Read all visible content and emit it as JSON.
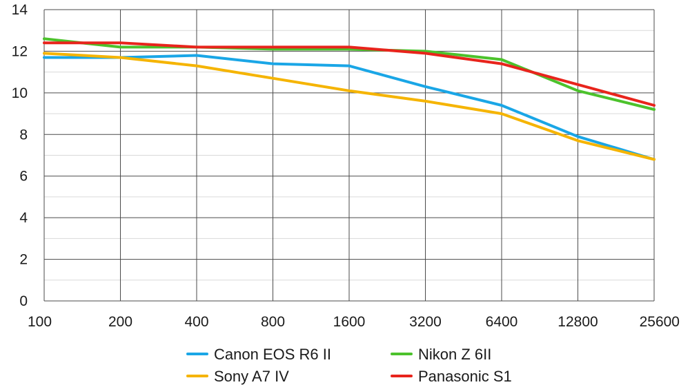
{
  "chart_data": {
    "type": "line",
    "title": "",
    "xlabel": "",
    "ylabel": "",
    "categories": [
      "100",
      "200",
      "400",
      "800",
      "1600",
      "3200",
      "6400",
      "12800",
      "25600"
    ],
    "ylim": [
      0,
      14
    ],
    "yticks": [
      "0",
      "2",
      "4",
      "6",
      "8",
      "10",
      "12",
      "14"
    ],
    "grid": true,
    "legend_position": "bottom",
    "series": [
      {
        "name": "Canon EOS R6 II",
        "color": "#1aa6e6",
        "values": [
          11.7,
          11.7,
          11.8,
          11.4,
          11.3,
          10.3,
          9.4,
          7.9,
          6.8
        ]
      },
      {
        "name": "Nikon Z 6II",
        "color": "#4cc22c",
        "values": [
          12.6,
          12.2,
          12.2,
          12.1,
          12.1,
          12.0,
          11.6,
          10.1,
          9.2
        ]
      },
      {
        "name": "Sony A7 IV",
        "color": "#f5b400",
        "values": [
          11.9,
          11.7,
          11.3,
          10.7,
          10.1,
          9.6,
          9.0,
          7.7,
          6.8
        ]
      },
      {
        "name": "Panasonic S1",
        "color": "#e8241c",
        "values": [
          12.4,
          12.4,
          12.2,
          12.2,
          12.2,
          11.9,
          11.4,
          10.4,
          9.4
        ]
      }
    ]
  }
}
